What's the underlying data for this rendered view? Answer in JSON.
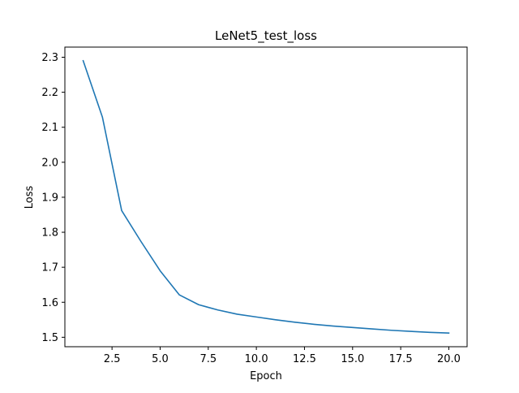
{
  "chart_data": {
    "type": "line",
    "title": "LeNet5_test_loss",
    "xlabel": "Epoch",
    "ylabel": "Loss",
    "xlim": [
      0.05,
      20.95
    ],
    "ylim": [
      1.473,
      2.329
    ],
    "xticks": [
      2.5,
      5.0,
      7.5,
      10.0,
      12.5,
      15.0,
      17.5,
      20.0
    ],
    "xtick_labels": [
      "2.5",
      "5.0",
      "7.5",
      "10.0",
      "12.5",
      "15.0",
      "17.5",
      "20.0"
    ],
    "yticks": [
      1.5,
      1.6,
      1.7,
      1.8,
      1.9,
      2.0,
      2.1,
      2.2,
      2.3
    ],
    "ytick_labels": [
      "1.5",
      "1.6",
      "1.7",
      "1.8",
      "1.9",
      "2.0",
      "2.1",
      "2.2",
      "2.3"
    ],
    "grid": false,
    "series": [
      {
        "color": "#1f77b4",
        "x": [
          1,
          2,
          3,
          4,
          5,
          6,
          7,
          8,
          9,
          10,
          11,
          12,
          13,
          14,
          15,
          16,
          17,
          18,
          19,
          20
        ],
        "y": [
          2.29,
          2.129,
          1.862,
          1.774,
          1.69,
          1.621,
          1.593,
          1.578,
          1.566,
          1.558,
          1.55,
          1.543,
          1.537,
          1.532,
          1.528,
          1.524,
          1.52,
          1.517,
          1.514,
          1.512
        ]
      }
    ]
  }
}
